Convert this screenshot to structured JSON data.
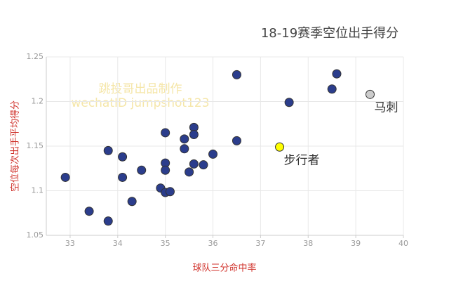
{
  "chart_data": {
    "type": "scatter",
    "title": "18-19赛季空位出手得分",
    "x_label": "球队三分命中率",
    "y_label": "空位每次出手平均得分",
    "watermark": [
      "跳投哥出品制作",
      "wechatID jumpshot123"
    ],
    "x": [
      32.9,
      33.4,
      33.8,
      33.8,
      34.1,
      34.1,
      34.3,
      34.5,
      34.9,
      35.0,
      35.1,
      35.0,
      35.0,
      35.0,
      35.4,
      35.4,
      35.5,
      35.6,
      35.6,
      35.6,
      35.8,
      36.0,
      36.5,
      36.5,
      37.6,
      38.5,
      38.6,
      37.4,
      39.3
    ],
    "y": [
      1.115,
      1.077,
      1.066,
      1.145,
      1.138,
      1.115,
      1.088,
      1.123,
      1.103,
      1.098,
      1.099,
      1.165,
      1.131,
      1.123,
      1.147,
      1.158,
      1.121,
      1.171,
      1.163,
      1.13,
      1.129,
      1.141,
      1.23,
      1.156,
      1.199,
      1.214,
      1.231,
      1.149,
      1.208
    ],
    "colors": [
      "#2b3d8c",
      "#2b3d8c",
      "#2b3d8c",
      "#2b3d8c",
      "#2b3d8c",
      "#2b3d8c",
      "#2b3d8c",
      "#2b3d8c",
      "#2b3d8c",
      "#2b3d8c",
      "#2b3d8c",
      "#2b3d8c",
      "#2b3d8c",
      "#2b3d8c",
      "#2b3d8c",
      "#2b3d8c",
      "#2b3d8c",
      "#2b3d8c",
      "#2b3d8c",
      "#2b3d8c",
      "#2b3d8c",
      "#2b3d8c",
      "#2b3d8c",
      "#2b3d8c",
      "#2b3d8c",
      "#2b3d8c",
      "#2b3d8c",
      "#ffff00",
      "#cccccc"
    ],
    "point_labels": [
      null,
      null,
      null,
      null,
      null,
      null,
      null,
      null,
      null,
      null,
      null,
      null,
      null,
      null,
      null,
      null,
      null,
      null,
      null,
      null,
      null,
      null,
      null,
      null,
      null,
      null,
      null,
      "步行者",
      "马刺"
    ],
    "xlim": [
      32.5,
      40
    ],
    "ylim": [
      1.05,
      1.25
    ],
    "xticks": [
      33,
      34,
      35,
      36,
      37,
      38,
      39,
      40
    ],
    "yticks": [
      1.05,
      1.1,
      1.15,
      1.2,
      1.25
    ],
    "grid": true
  }
}
